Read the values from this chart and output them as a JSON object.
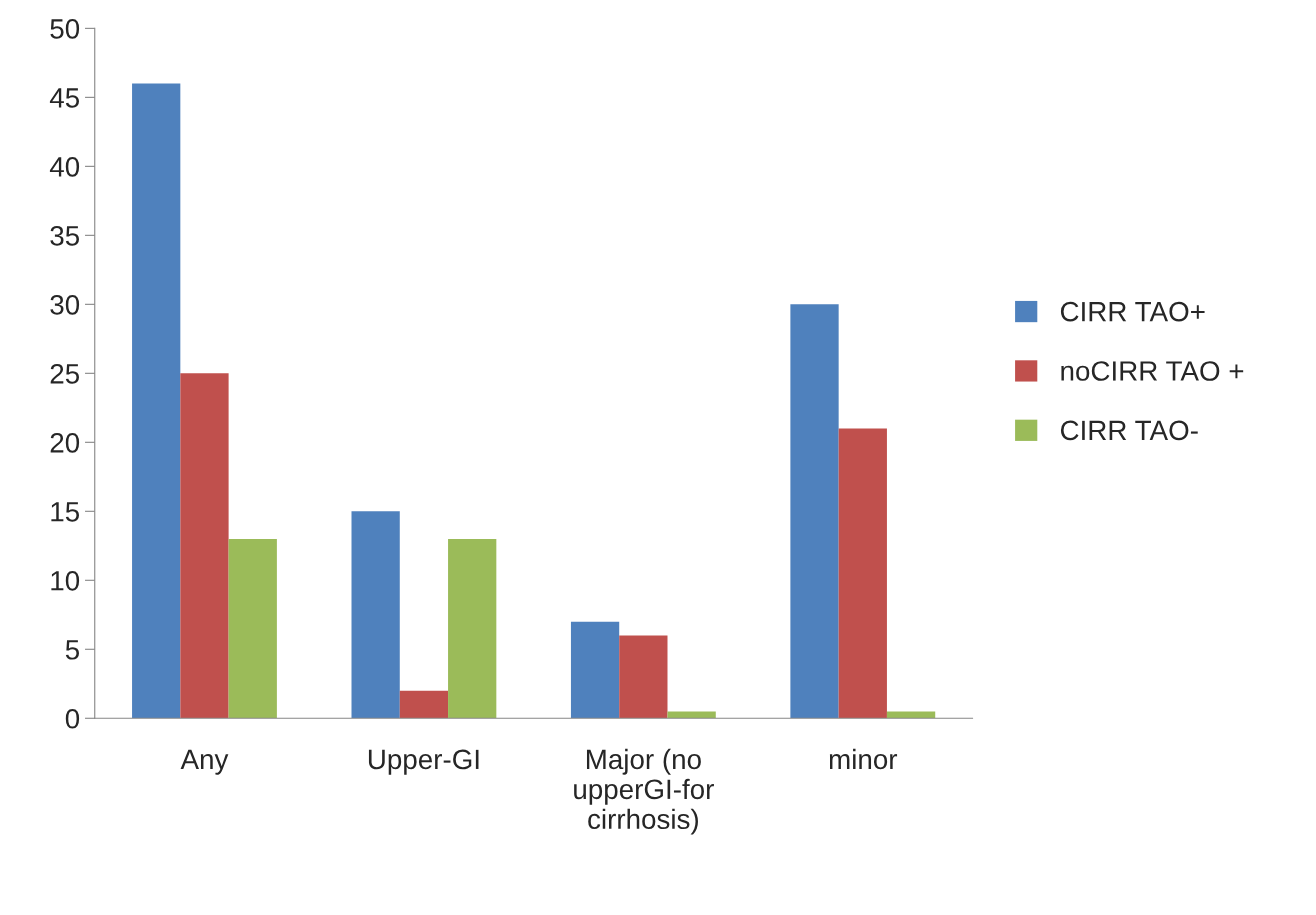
{
  "chart_data": {
    "type": "bar",
    "categories": [
      "Any",
      "Upper-GI",
      "Major (no\nupperGI-for\ncirrhosis)",
      "minor"
    ],
    "series": [
      {
        "name": "CIRR TAO+",
        "color": "#4f81bd",
        "values": [
          46,
          15,
          7,
          30
        ]
      },
      {
        "name": "noCIRR TAO +",
        "color": "#c0504d",
        "values": [
          25,
          2,
          6,
          21
        ]
      },
      {
        "name": "CIRR TAO-",
        "color": "#9bbb59",
        "values": [
          13,
          13,
          0.5,
          0.5
        ]
      }
    ],
    "ylim": [
      0,
      50
    ],
    "yticks": [
      0,
      5,
      10,
      15,
      20,
      25,
      30,
      35,
      40,
      45,
      50
    ],
    "grid": false,
    "legend": "right"
  }
}
